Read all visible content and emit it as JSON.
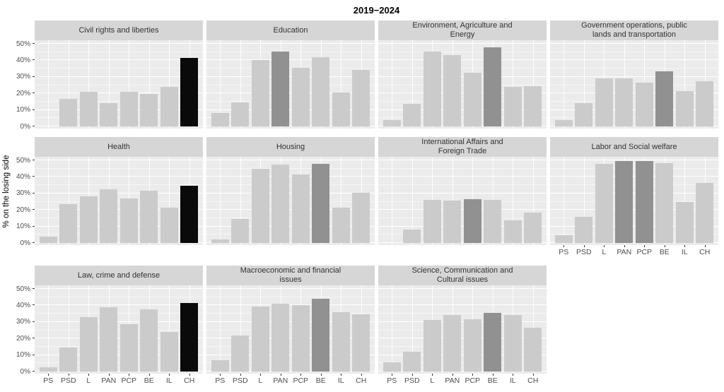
{
  "title": "2019−2024",
  "ylabel": "% on the losing side",
  "colors": {
    "bar_light": "#cbcbcb",
    "bar_dark": "#919191",
    "bar_black": "#0a0a0a",
    "panel_bg": "#ebebeb",
    "strip_bg": "#d6d6d6",
    "grid_line": "#ffffff",
    "tick_text": "#4d4d4d"
  },
  "chart_data": {
    "type": "bar",
    "title": "2019−2024",
    "ylabel": "% on the losing side",
    "ylim": [
      0,
      52.5
    ],
    "grid": true,
    "legend_position": "none",
    "categories": [
      "PS",
      "PSD",
      "L",
      "PAN",
      "PCP",
      "BE",
      "IL",
      "CH"
    ],
    "yticks": [
      {
        "label": "0%",
        "value": 0
      },
      {
        "label": "10%",
        "value": 10
      },
      {
        "label": "20%",
        "value": 20
      },
      {
        "label": "30%",
        "value": 30
      },
      {
        "label": "40%",
        "value": 40
      },
      {
        "label": "50%",
        "value": 50
      }
    ],
    "layout_rows": [
      [
        0,
        1,
        2,
        3
      ],
      [
        4,
        5,
        6,
        7
      ],
      [
        8,
        9,
        10,
        null
      ]
    ],
    "facets": [
      {
        "title": "Civil rights and liberties",
        "show_x": false,
        "values": [
          0,
          16.5,
          21,
          14,
          21,
          19.5,
          24,
          41.5
        ],
        "fills": [
          "light",
          "light",
          "light",
          "light",
          "light",
          "light",
          "light",
          "black"
        ]
      },
      {
        "title": "Education",
        "show_x": false,
        "values": [
          8,
          14.5,
          40,
          45.5,
          35.5,
          42,
          20.5,
          34
        ],
        "fills": [
          "light",
          "light",
          "light",
          "dark",
          "light",
          "light",
          "light",
          "light"
        ]
      },
      {
        "title": "Environment, Agriculture and\nEnergy",
        "show_x": false,
        "values": [
          4,
          13.5,
          45.5,
          43,
          32.5,
          48,
          24,
          24.5
        ],
        "fills": [
          "light",
          "light",
          "light",
          "light",
          "light",
          "dark",
          "light",
          "light"
        ]
      },
      {
        "title": "Government operations, public\nlands and transportation",
        "show_x": false,
        "values": [
          4,
          14,
          29,
          29,
          26.5,
          33.5,
          21.5,
          27.5
        ],
        "fills": [
          "light",
          "light",
          "light",
          "light",
          "light",
          "dark",
          "light",
          "light"
        ]
      },
      {
        "title": "Health",
        "show_x": false,
        "values": [
          4,
          23.5,
          28,
          32.5,
          27,
          31.5,
          21.5,
          34.5
        ],
        "fills": [
          "light",
          "light",
          "light",
          "light",
          "light",
          "light",
          "light",
          "black"
        ]
      },
      {
        "title": "Housing",
        "show_x": false,
        "values": [
          2,
          14.5,
          45,
          47.5,
          41.5,
          48,
          21.5,
          30.5
        ],
        "fills": [
          "light",
          "light",
          "light",
          "light",
          "light",
          "dark",
          "light",
          "light"
        ]
      },
      {
        "title": "International Affairs and\nForeign Trade",
        "show_x": false,
        "values": [
          0,
          8,
          26,
          25.5,
          26.5,
          26,
          13.5,
          18.5
        ],
        "fills": [
          "light",
          "light",
          "light",
          "light",
          "dark",
          "light",
          "light",
          "light"
        ]
      },
      {
        "title": "Labor and Social welfare",
        "show_x": true,
        "values": [
          4.5,
          16,
          48,
          49.5,
          49.5,
          48.5,
          25,
          36.5
        ],
        "fills": [
          "light",
          "light",
          "light",
          "dark",
          "dark",
          "light",
          "light",
          "light"
        ]
      },
      {
        "title": "Law, crime and defense",
        "show_x": true,
        "values": [
          2.5,
          14.5,
          33,
          39,
          28.5,
          37.5,
          24,
          41.5
        ],
        "fills": [
          "light",
          "light",
          "light",
          "light",
          "light",
          "light",
          "light",
          "black"
        ]
      },
      {
        "title": "Macroeconomic and financial\nissues",
        "show_x": true,
        "values": [
          7,
          22,
          39.5,
          41,
          40,
          44,
          36,
          34.5
        ],
        "fills": [
          "light",
          "light",
          "light",
          "light",
          "light",
          "dark",
          "light",
          "light"
        ]
      },
      {
        "title": "Science, Communication and\nCultural issues",
        "show_x": true,
        "values": [
          5.5,
          12,
          31,
          34,
          31.5,
          35.5,
          34,
          26.5
        ],
        "fills": [
          "light",
          "light",
          "light",
          "light",
          "light",
          "dark",
          "light",
          "light"
        ]
      }
    ]
  }
}
